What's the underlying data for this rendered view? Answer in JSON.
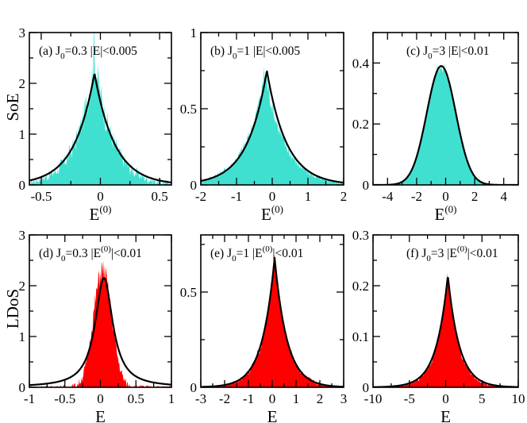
{
  "colors": {
    "top_fill": "#40e0d0",
    "bottom_fill": "#ff0000",
    "curve": "#000000"
  },
  "row_labels": {
    "top": "SoE",
    "bottom": "LDoS"
  },
  "chart_data": [
    {
      "id": "a",
      "type": "area",
      "row": 0,
      "col": 0,
      "label_prefix": "(a) J",
      "label_sub": "0",
      "label_mid": "=0.3  |E|<0.005",
      "label_sup": "",
      "label_suffix": "",
      "xlabel": "E",
      "xlabel_sup": "(0)",
      "xlim": [
        -0.6,
        0.6
      ],
      "ylim": [
        0,
        3
      ],
      "xticks": [
        -0.5,
        0,
        0.5
      ],
      "xtick_labels": [
        "-0.5",
        "0",
        "0.5"
      ],
      "yticks": [
        0,
        1,
        2,
        3
      ],
      "ytick_labels": [
        "0",
        "1",
        "2",
        "3"
      ],
      "fit": {
        "shape": "exp",
        "center": -0.05,
        "amplitude": 2.2,
        "width": 0.17
      },
      "histogram": {
        "shape": "exp",
        "center": -0.05,
        "amplitude": 2.5,
        "width": 0.15,
        "noise": 0.35,
        "peak": 3.45
      }
    },
    {
      "id": "b",
      "type": "area",
      "row": 0,
      "col": 1,
      "label_prefix": "(b) J",
      "label_sub": "0",
      "label_mid": "=1  |E|<0.005",
      "label_sup": "",
      "label_suffix": "",
      "xlabel": "E",
      "xlabel_sup": "(0)",
      "xlim": [
        -2,
        2
      ],
      "ylim": [
        0,
        1
      ],
      "xticks": [
        -2,
        -1,
        0,
        1,
        2
      ],
      "xtick_labels": [
        "-2",
        "-1",
        "0",
        "1",
        "2"
      ],
      "yticks": [
        0,
        0.5,
        1
      ],
      "ytick_labels": [
        "0",
        "0.5",
        "1"
      ],
      "fit": {
        "shape": "exp",
        "center": -0.15,
        "amplitude": 0.75,
        "width": 0.55
      },
      "histogram": {
        "shape": "exp",
        "center": -0.2,
        "amplitude": 0.74,
        "width": 0.55,
        "noise": 0.06,
        "peak": 0.78
      }
    },
    {
      "id": "c",
      "type": "area",
      "row": 0,
      "col": 2,
      "label_prefix": "(c) J",
      "label_sub": "0",
      "label_mid": "=3  |E|<0.01",
      "label_sup": "",
      "label_suffix": "",
      "xlabel": "E",
      "xlabel_sup": "(0)",
      "xlim": [
        -5,
        5
      ],
      "ylim": [
        0,
        0.5
      ],
      "xticks": [
        -4,
        -2,
        0,
        2,
        4
      ],
      "xtick_labels": [
        "-4",
        "-2",
        "0",
        "2",
        "4"
      ],
      "yticks": [
        0,
        0.2,
        0.4
      ],
      "ytick_labels": [
        "0",
        "0.2",
        "0.4"
      ],
      "fit": {
        "shape": "gauss",
        "center": -0.3,
        "amplitude": 0.39,
        "width": 1.0
      },
      "histogram": {
        "shape": "gauss",
        "center": -0.3,
        "amplitude": 0.39,
        "width": 1.0,
        "noise": 0.02,
        "peak": 0.4
      }
    },
    {
      "id": "d",
      "type": "area",
      "row": 1,
      "col": 0,
      "label_prefix": "(d) J",
      "label_sub": "0",
      "label_mid": "=0.3  |E",
      "label_sup": "(0)",
      "label_suffix": "|<0.01",
      "xlabel": "E",
      "xlabel_sup": "",
      "xlim": [
        -1,
        1
      ],
      "ylim": [
        0,
        3
      ],
      "xticks": [
        -1,
        -0.5,
        0,
        0.5,
        1
      ],
      "xtick_labels": [
        "-1",
        "-0.5",
        "0",
        "0.5",
        "1"
      ],
      "yticks": [
        0,
        1,
        2,
        3
      ],
      "ytick_labels": [
        "0",
        "1",
        "2",
        "3"
      ],
      "fit": {
        "shape": "lorentz",
        "center": 0.05,
        "amplitude": 2.15,
        "width": 0.15
      },
      "histogram": {
        "shape": "gauss",
        "center": 0.03,
        "amplitude": 2.3,
        "width": 0.13,
        "noise": 0.25,
        "peak": 2.5
      }
    },
    {
      "id": "e",
      "type": "area",
      "row": 1,
      "col": 1,
      "label_prefix": "(e) J",
      "label_sub": "0",
      "label_mid": "=1  |E",
      "label_sup": "(0)",
      "label_suffix": "|<0.01",
      "xlabel": "E",
      "xlabel_sup": "",
      "xlim": [
        -3,
        3
      ],
      "ylim": [
        0,
        0.8
      ],
      "xticks": [
        -3,
        -2,
        -1,
        0,
        1,
        2,
        3
      ],
      "xtick_labels": [
        "-3",
        "-2",
        "-1",
        "0",
        "1",
        "2",
        "3"
      ],
      "yticks": [
        0,
        0.5
      ],
      "ytick_labels": [
        "0",
        "0.5"
      ],
      "fit": {
        "shape": "exp",
        "center": 0.1,
        "amplitude": 0.68,
        "width": 0.52
      },
      "histogram": {
        "shape": "exp",
        "center": 0.1,
        "amplitude": 0.68,
        "width": 0.52,
        "noise": 0.04,
        "peak": 0.7
      }
    },
    {
      "id": "f",
      "type": "area",
      "row": 1,
      "col": 2,
      "label_prefix": "(f) J",
      "label_sub": "0",
      "label_mid": "=3  |E",
      "label_sup": "(0)",
      "label_suffix": "|<0.01",
      "xlabel": "E",
      "xlabel_sup": "",
      "xlim": [
        -10,
        10
      ],
      "ylim": [
        0,
        0.3
      ],
      "xticks": [
        -10,
        -5,
        0,
        5,
        10
      ],
      "xtick_labels": [
        "-10",
        "-5",
        "0",
        "5",
        "10"
      ],
      "yticks": [
        0,
        0.1,
        0.2,
        0.3
      ],
      "ytick_labels": [
        "0",
        "0.1",
        "0.2",
        "0.3"
      ],
      "fit": {
        "shape": "exp",
        "center": 0.3,
        "amplitude": 0.22,
        "width": 1.6
      },
      "histogram": {
        "shape": "exp",
        "center": 0.3,
        "amplitude": 0.22,
        "width": 1.55,
        "noise": 0.012,
        "peak": 0.225
      }
    }
  ]
}
